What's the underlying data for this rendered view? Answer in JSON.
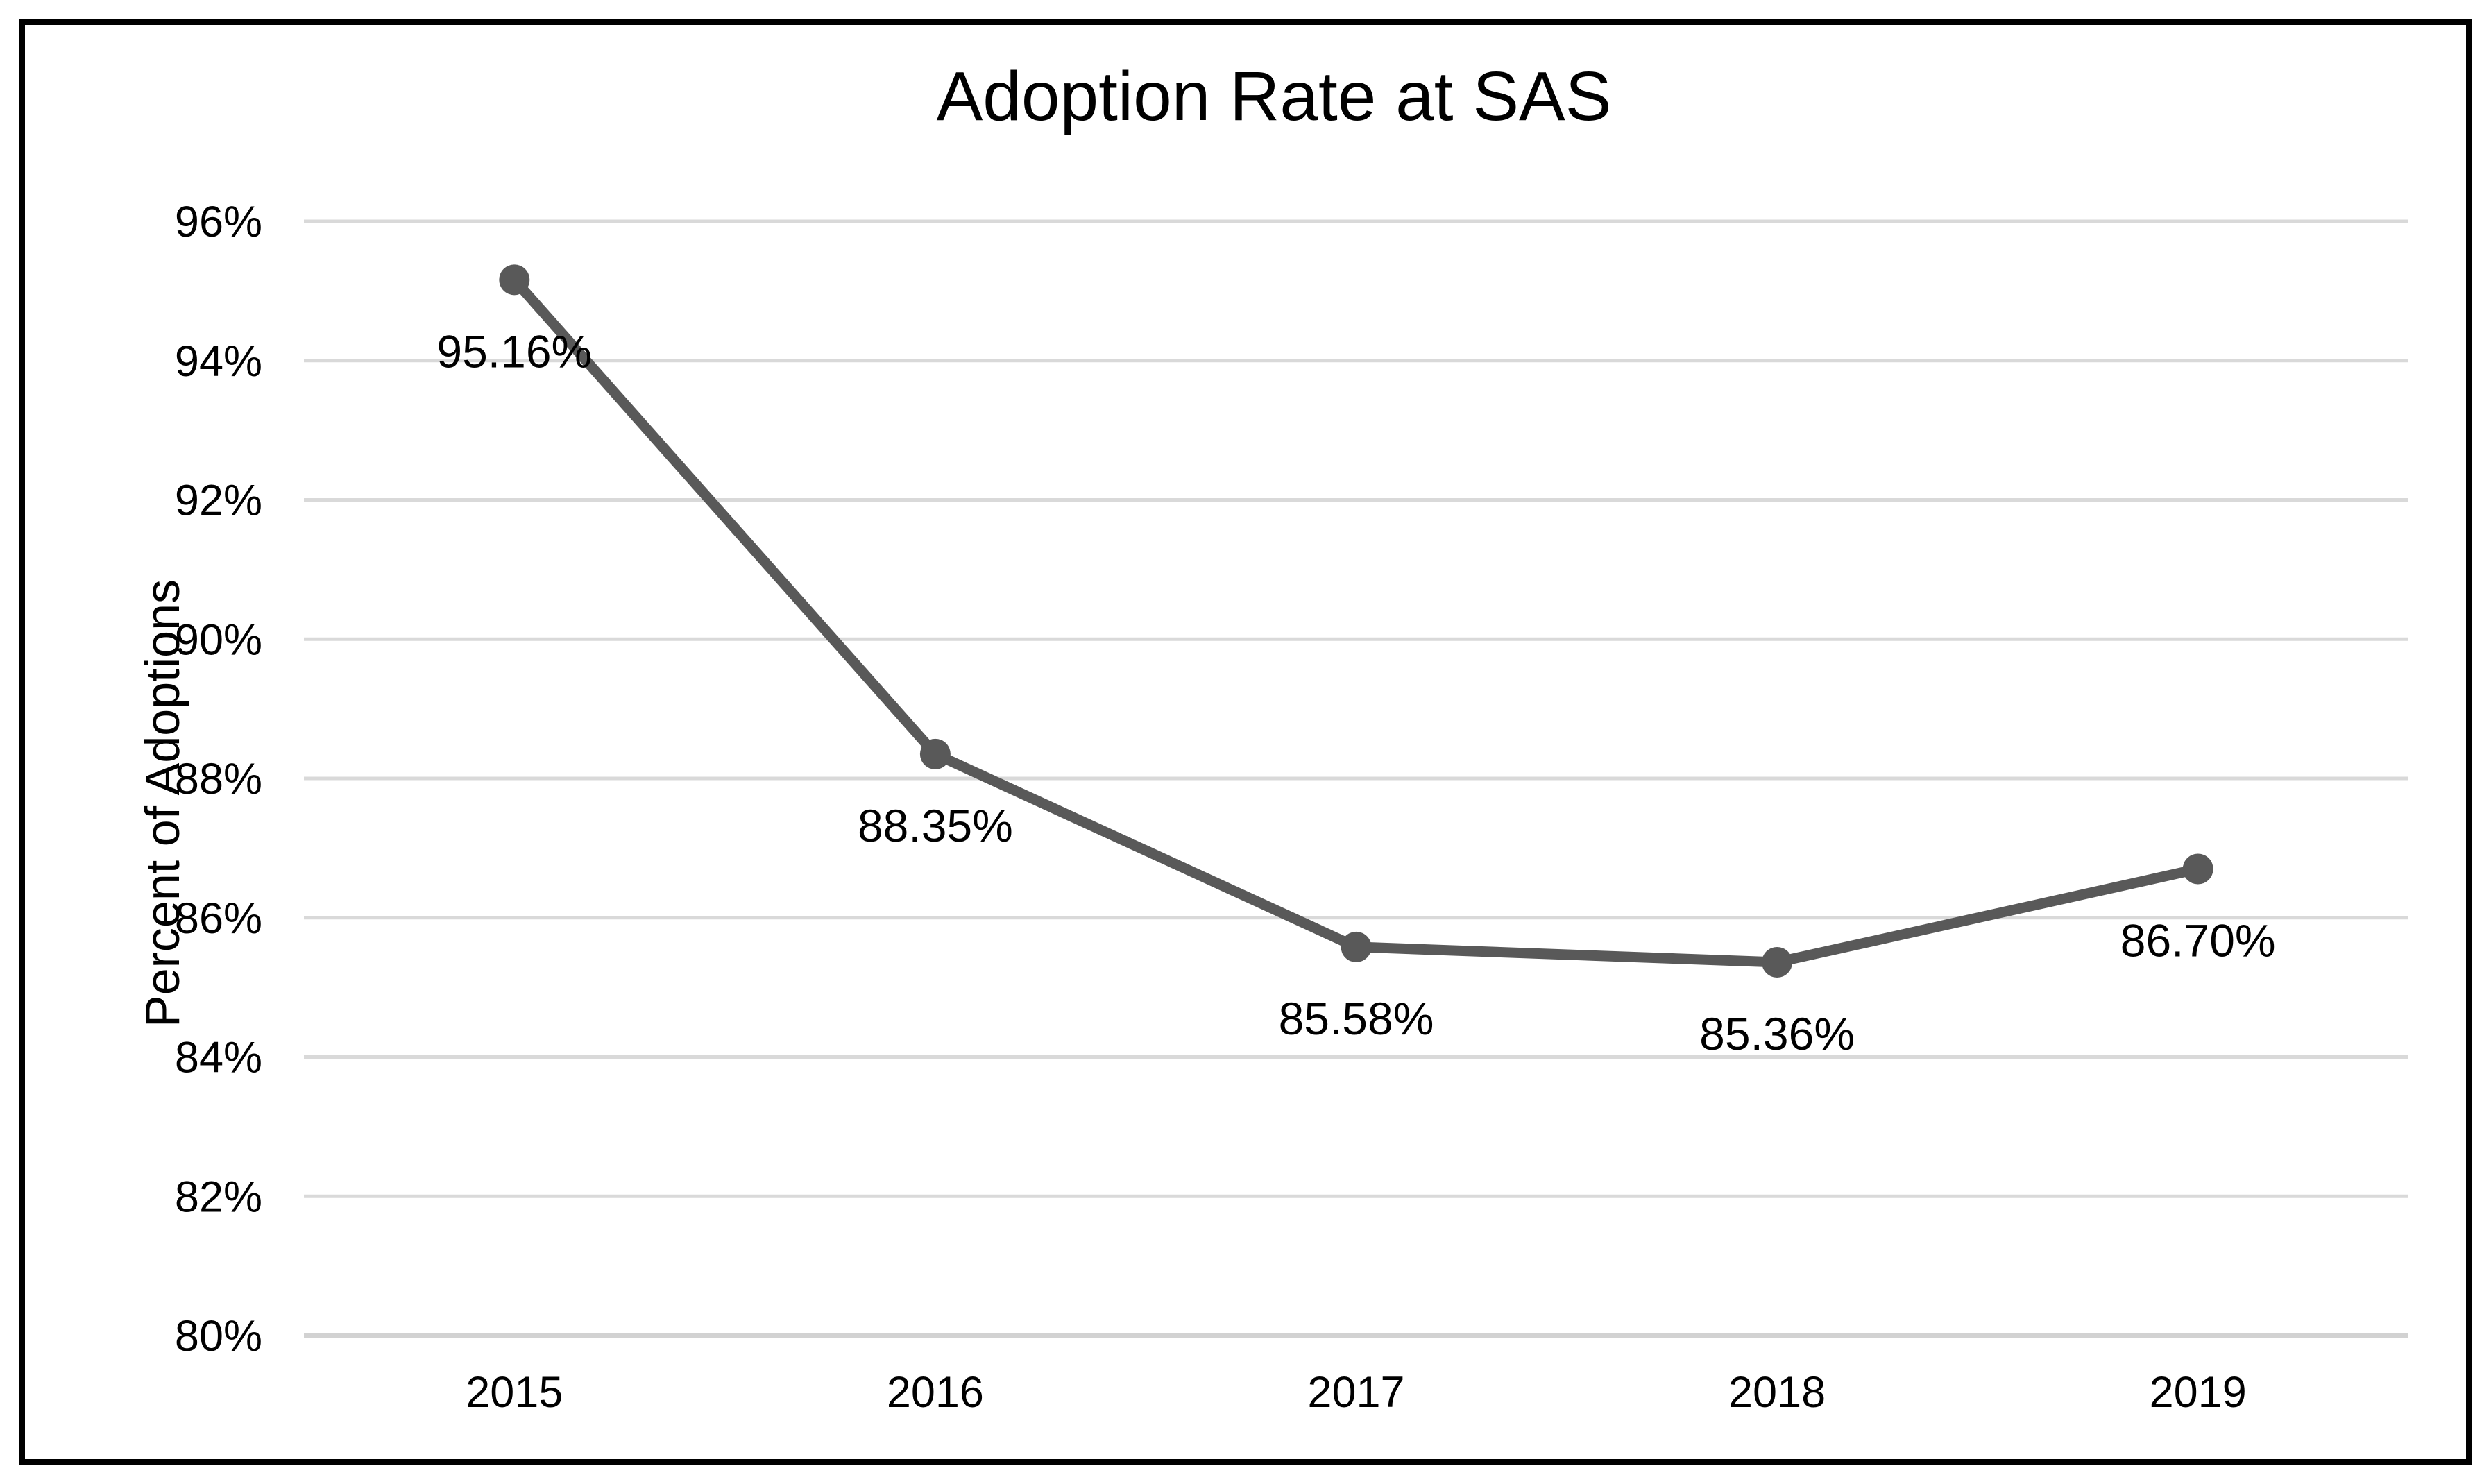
{
  "chart_data": {
    "type": "line",
    "title": "Adoption Rate at SAS",
    "ylabel": "Percent of Adoptions",
    "xlabel": "",
    "categories": [
      "2015",
      "2016",
      "2017",
      "2018",
      "2019"
    ],
    "series": [
      {
        "name": "Adoption Rate",
        "values": [
          95.16,
          88.35,
          85.58,
          85.36,
          86.7
        ],
        "data_labels": [
          "95.16%",
          "88.35%",
          "85.58%",
          "85.36%",
          "86.70%"
        ]
      }
    ],
    "ylim": [
      80,
      96
    ],
    "ytick_values": [
      96,
      94,
      92,
      90,
      88,
      86,
      84,
      82,
      80
    ],
    "ytick_labels": [
      "96%",
      "94%",
      "92%",
      "90%",
      "88%",
      "86%",
      "84%",
      "82%",
      "80%"
    ],
    "grid": "horizontal",
    "legend_position": "none",
    "colors": {
      "line": "#595959",
      "marker": "#595959",
      "gridline": "#D9D9D9",
      "axis_line": "#D2D2D2",
      "text": "#000000",
      "frame_border": "#000000",
      "background": "#FFFFFF"
    }
  }
}
